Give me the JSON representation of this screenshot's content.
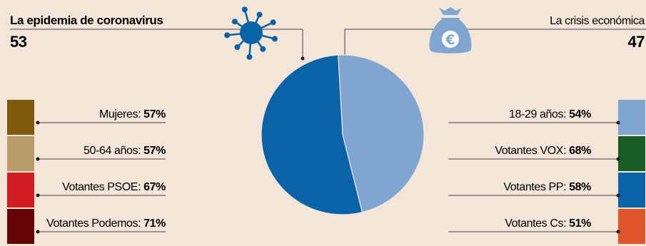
{
  "chart_data": {
    "type": "pie",
    "slices": [
      {
        "label": "La crisis económica",
        "value": 47,
        "color": "#7ea6d1"
      },
      {
        "label": "La epidemia de coronavirus",
        "value": 53,
        "color": "#0b63a7"
      }
    ],
    "left_header": {
      "title": "La epidemia de coronavirus",
      "value": "53"
    },
    "right_header": {
      "title": "La crisis económica",
      "value": "47"
    },
    "left_categories": [
      {
        "label": "Mujeres:",
        "pct": "57%",
        "color": "#7d5a0d"
      },
      {
        "label": "50-64 años:",
        "pct": "57%",
        "color": "#b99c6b"
      },
      {
        "label": "Votantes PSOE:",
        "pct": "67%",
        "color": "#d21c22"
      },
      {
        "label": "Votantes Podemos:",
        "pct": "71%",
        "color": "#650404"
      }
    ],
    "right_categories": [
      {
        "label": "18-29 años:",
        "pct": "54%",
        "color": "#7ea6d1"
      },
      {
        "label": "Votantes VOX:",
        "pct": "68%",
        "color": "#165e25"
      },
      {
        "label": "Votantes PP:",
        "pct": "58%",
        "color": "#0b63a7"
      },
      {
        "label": "Votantes Cs:",
        "pct": "51%",
        "color": "#e0542b"
      }
    ]
  },
  "icons": {
    "virus": {
      "name": "virus-icon",
      "color": "#0b63a7"
    },
    "money_bag": {
      "name": "money-bag-euro-icon",
      "color": "#7ea6d1",
      "symbol": "€"
    }
  }
}
